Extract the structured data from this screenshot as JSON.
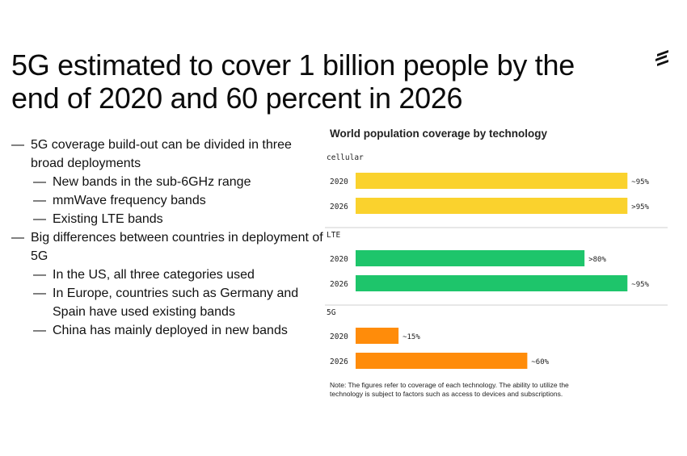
{
  "title": "5G estimated to cover 1 billion people by the end of 2020 and 60 percent in 2026",
  "bullets": [
    {
      "level": 1,
      "text": "5G coverage build-out can be divided in three broad deployments"
    },
    {
      "level": 2,
      "text": "New bands in the sub-6GHz range"
    },
    {
      "level": 2,
      "text": "mmWave frequency bands"
    },
    {
      "level": 2,
      "text": "Existing LTE bands"
    },
    {
      "level": 1,
      "text": "Big differences between countries in deployment of 5G"
    },
    {
      "level": 2,
      "text": "In the US, all three categories used"
    },
    {
      "level": 2,
      "text": "In Europe, countries such as Germany and Spain have used existing bands"
    },
    {
      "level": 2,
      "text": "China has mainly deployed in new bands"
    }
  ],
  "dash": "—",
  "chart_data": {
    "type": "bar",
    "orientation": "horizontal",
    "title": "World population coverage by technology",
    "xlim": [
      0,
      100
    ],
    "groups": [
      {
        "name": "cellular",
        "color": "#fad22d",
        "bars": [
          {
            "category": "2020",
            "value": 95,
            "label": "~95%"
          },
          {
            "category": "2026",
            "value": 95,
            "label": ">95%"
          }
        ]
      },
      {
        "name": "LTE",
        "color": "#1ec56b",
        "bars": [
          {
            "category": "2020",
            "value": 80,
            "label": ">80%"
          },
          {
            "category": "2026",
            "value": 95,
            "label": "~95%"
          }
        ]
      },
      {
        "name": "5G",
        "color": "#ff8c0a",
        "bars": [
          {
            "category": "2020",
            "value": 15,
            "label": "~15%"
          },
          {
            "category": "2026",
            "value": 60,
            "label": "~60%"
          }
        ]
      }
    ]
  },
  "note": "Note: The figures refer to coverage of each technology. The ability to utilize the technology is subject to factors such as access to devices and subscriptions."
}
